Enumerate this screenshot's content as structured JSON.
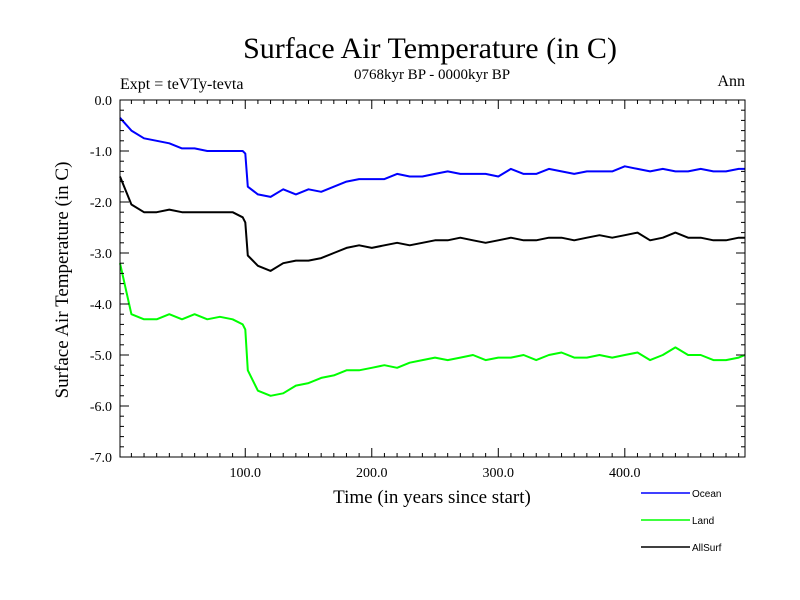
{
  "header": {
    "title": "Surface Air Temperature (in C)",
    "subtitle": "0768kyr BP - 0000kyr BP",
    "expt": "Expt = teVTy-tevta",
    "season": "Ann"
  },
  "colors": {
    "ocean": "#0000ff",
    "land": "#00ff00",
    "allsurf": "#000000"
  },
  "chart_data": {
    "type": "line",
    "title": "Surface Air Temperature (in C)",
    "xlabel": "Time (in years since start)",
    "ylabel": "Surface Air Temperature (in C)",
    "xlim": [
      1,
      495
    ],
    "ylim": [
      -7.0,
      0.0
    ],
    "xticks": [
      100,
      200,
      300,
      400
    ],
    "xtick_labels": [
      "100.0",
      "200.0",
      "300.0",
      "400.0"
    ],
    "yticks": [
      0,
      -1,
      -2,
      -3,
      -4,
      -5,
      -6,
      -7
    ],
    "ytick_labels": [
      "0.0",
      "-1.0",
      "-2.0",
      "-3.0",
      "-4.0",
      "-5.0",
      "-6.0",
      "-7.0"
    ],
    "x": [
      1,
      10,
      20,
      30,
      40,
      50,
      60,
      70,
      80,
      90,
      98,
      100,
      102,
      110,
      120,
      130,
      140,
      150,
      160,
      170,
      180,
      190,
      200,
      210,
      220,
      230,
      240,
      250,
      260,
      270,
      280,
      290,
      300,
      310,
      320,
      330,
      340,
      350,
      360,
      370,
      380,
      390,
      400,
      410,
      420,
      430,
      440,
      450,
      460,
      470,
      480,
      490,
      495
    ],
    "series": [
      {
        "name": "Ocean",
        "values": [
          -0.35,
          -0.6,
          -0.75,
          -0.8,
          -0.85,
          -0.95,
          -0.95,
          -1.0,
          -1.0,
          -1.0,
          -1.0,
          -1.05,
          -1.7,
          -1.85,
          -1.9,
          -1.75,
          -1.85,
          -1.75,
          -1.8,
          -1.7,
          -1.6,
          -1.55,
          -1.55,
          -1.55,
          -1.45,
          -1.5,
          -1.5,
          -1.45,
          -1.4,
          -1.45,
          -1.45,
          -1.45,
          -1.5,
          -1.35,
          -1.45,
          -1.45,
          -1.35,
          -1.4,
          -1.45,
          -1.4,
          -1.4,
          -1.4,
          -1.3,
          -1.35,
          -1.4,
          -1.35,
          -1.4,
          -1.4,
          -1.35,
          -1.4,
          -1.4,
          -1.35,
          -1.35
        ]
      },
      {
        "name": "Land",
        "values": [
          -3.2,
          -4.2,
          -4.3,
          -4.3,
          -4.2,
          -4.3,
          -4.2,
          -4.3,
          -4.25,
          -4.3,
          -4.4,
          -4.5,
          -5.3,
          -5.7,
          -5.8,
          -5.75,
          -5.6,
          -5.55,
          -5.45,
          -5.4,
          -5.3,
          -5.3,
          -5.25,
          -5.2,
          -5.25,
          -5.15,
          -5.1,
          -5.05,
          -5.1,
          -5.05,
          -5.0,
          -5.1,
          -5.05,
          -5.05,
          -5.0,
          -5.1,
          -5.0,
          -4.95,
          -5.05,
          -5.05,
          -5.0,
          -5.05,
          -5.0,
          -4.95,
          -5.1,
          -5.0,
          -4.85,
          -5.0,
          -5.0,
          -5.1,
          -5.1,
          -5.05,
          -5.0
        ]
      },
      {
        "name": "AllSurf",
        "values": [
          -1.5,
          -2.05,
          -2.2,
          -2.2,
          -2.15,
          -2.2,
          -2.2,
          -2.2,
          -2.2,
          -2.2,
          -2.3,
          -2.4,
          -3.05,
          -3.25,
          -3.35,
          -3.2,
          -3.15,
          -3.15,
          -3.1,
          -3.0,
          -2.9,
          -2.85,
          -2.9,
          -2.85,
          -2.8,
          -2.85,
          -2.8,
          -2.75,
          -2.75,
          -2.7,
          -2.75,
          -2.8,
          -2.75,
          -2.7,
          -2.75,
          -2.75,
          -2.7,
          -2.7,
          -2.75,
          -2.7,
          -2.65,
          -2.7,
          -2.65,
          -2.6,
          -2.75,
          -2.7,
          -2.6,
          -2.7,
          -2.7,
          -2.75,
          -2.75,
          -2.7,
          -2.7
        ]
      }
    ],
    "legend": {
      "position": "bottom-right",
      "entries": [
        "Ocean",
        "Land",
        "AllSurf"
      ]
    }
  }
}
